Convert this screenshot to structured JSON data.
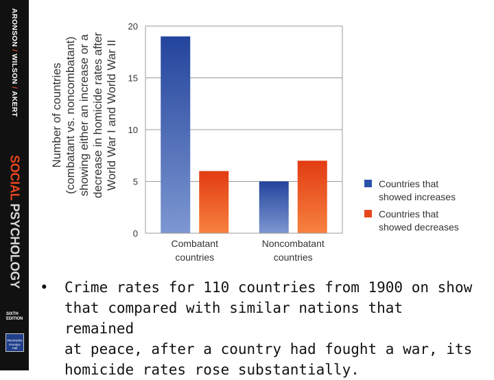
{
  "spine": {
    "author_1": "ARONSON",
    "author_2": "WILSON",
    "author_3": "AKERT",
    "separator": "/",
    "title_part_1": "SOCIAL",
    "title_part_2": "PSYCHOLOGY",
    "edition_1": "SIXTH",
    "edition_2": "EDITION",
    "publisher_1": "PEARSON",
    "publisher_2": "Prentice",
    "publisher_3": "Hall"
  },
  "colors": {
    "spine_bg": "#111111",
    "increase_series": "#2a52a8",
    "decrease_series": "#e8461d",
    "title_accent": "#e8461d"
  },
  "chart_data": {
    "type": "bar",
    "categories": [
      [
        "Combatant",
        "countries"
      ],
      [
        "Noncombatant",
        "countries"
      ]
    ],
    "series": [
      {
        "name": [
          "Countries that",
          "showed increases"
        ],
        "values": [
          19,
          5
        ],
        "color": "#2a52a8"
      },
      {
        "name": [
          "Countries that",
          "showed decreases"
        ],
        "values": [
          6,
          7
        ],
        "color": "#e8461d"
      }
    ],
    "ylabel": [
      "Number of countries",
      "(combatant vs. noncombatant)",
      "showing either an increase or a",
      "decrease in homicide rates after",
      "World War I and World War II"
    ],
    "ylim": [
      0,
      20
    ],
    "yticks": [
      0,
      5,
      10,
      15,
      20
    ],
    "grid": true,
    "legend": "right"
  },
  "caption": {
    "bullet": "•",
    "lines": [
      "Crime rates for 110 countries from 1900 on show",
      "that compared with similar nations that remained",
      "at peace, after a country had fought a war, its",
      "homicide rates rose substantially."
    ]
  }
}
